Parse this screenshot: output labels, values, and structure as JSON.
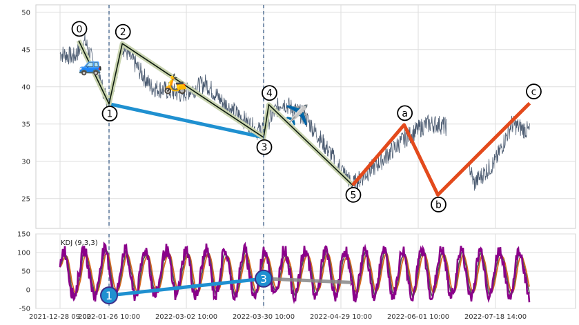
{
  "chart_data": [
    {
      "type": "line",
      "panel": "price",
      "ylim": [
        21,
        51
      ],
      "y_ticks": [
        25,
        30,
        35,
        40,
        45,
        50
      ],
      "x_ticks": [
        "2021-12-28 09:00",
        "2022-01-26 10:00",
        "2022-03-02 10:00",
        "2022-03-30 10:00",
        "2022-04-29 10:00",
        "2022-06-01 10:00",
        "2022-07-18 14:00"
      ],
      "grid": true,
      "vertical_markers": [
        "2022-01-26 10:00",
        "2022-03-30 10:00"
      ],
      "price_series_anchors": {
        "x": [
          "2021-12-28 09:00",
          "2022-01-05 10:00",
          "2022-01-12 10:00",
          "2022-01-26 10:00",
          "2022-02-01 10:00",
          "2022-02-14 10:00",
          "2022-02-28 10:00",
          "2022-03-09 10:00",
          "2022-03-15 10:00",
          "2022-03-28 10:00",
          "2022-03-31 10:00",
          "2022-04-06 10:00",
          "2022-04-15 10:00",
          "2022-04-25 10:00",
          "2022-05-04 10:00",
          "2022-05-16 10:00",
          "2022-05-26 10:00",
          "2022-06-06 10:00",
          "2022-06-13 10:00",
          "2022-06-27 10:00",
          "2022-07-05 10:00",
          "2022-07-18 14:00",
          "2022-07-28 10:00",
          "2022-08-08 10:00"
        ],
        "y": [
          44.5,
          44,
          46,
          37.5,
          45.5,
          40,
          39,
          40.5,
          38,
          34,
          35,
          38,
          36,
          31,
          26.8,
          30,
          33,
          35,
          35,
          34,
          27,
          30,
          35,
          34
        ]
      },
      "waves": [
        {
          "label": "0",
          "x": "2022-01-08 10:00",
          "y": 46.2
        },
        {
          "label": "1",
          "x": "2022-01-26 10:00",
          "y": 37.7
        },
        {
          "label": "2",
          "x": "2022-02-01 10:00",
          "y": 45.8
        },
        {
          "label": "3",
          "x": "2022-03-30 10:00",
          "y": 33.2
        },
        {
          "label": "4",
          "x": "2022-04-01 10:00",
          "y": 37.6
        },
        {
          "label": "5",
          "x": "2022-05-04 10:00",
          "y": 26.8
        },
        {
          "label": "a",
          "x": "2022-05-26 10:00",
          "y": 34.9
        },
        {
          "label": "b",
          "x": "2022-06-13 10:00",
          "y": 25.5
        },
        {
          "label": "c",
          "x": "2022-08-08 10:00",
          "y": 37.8
        }
      ],
      "impulse_path": [
        "0",
        "1",
        "2",
        "3",
        "4",
        "5"
      ],
      "correction_path": [
        "5",
        "a",
        "b",
        "c"
      ],
      "trend_line": [
        "1",
        "3"
      ],
      "emoji": [
        {
          "icon": "car-icon",
          "glyph": "🚙",
          "x": "2022-01-15 10:00",
          "y": 43
        },
        {
          "icon": "scooter-icon",
          "glyph": "🛵",
          "x": "2022-02-25 10:00",
          "y": 40.5
        },
        {
          "icon": "airplane-icon",
          "glyph": "✈️",
          "x": "2022-04-12 10:00",
          "y": 36.3
        }
      ],
      "colors": {
        "price": "#4a5a70",
        "impulse": "#0d1a0d",
        "impulse_band": "#c9d4b0",
        "correction": "#e34a1c",
        "trend": "#1f90d0",
        "marker": "#4a6a90"
      }
    },
    {
      "type": "line",
      "panel": "indicator",
      "title": "KDJ (9,3,3)",
      "ylim": [
        -50,
        150
      ],
      "y_ticks": [
        -50,
        0,
        50,
        100,
        150
      ],
      "grid": true,
      "series": [
        {
          "name": "K",
          "color": "#555555"
        },
        {
          "name": "D",
          "color": "#d8691e"
        },
        {
          "name": "J",
          "color": "#8a008a"
        }
      ],
      "waves": [
        {
          "label": "1",
          "x": "2022-01-26 10:00",
          "y": -15
        },
        {
          "label": "3",
          "x": "2022-03-30 10:00",
          "y": 30
        }
      ],
      "colors": {
        "wave_fill": "#1f90d0",
        "wave_stroke": "#3d2e8a",
        "trend": "#1f90d0",
        "trend_grey": "#888888"
      }
    }
  ]
}
